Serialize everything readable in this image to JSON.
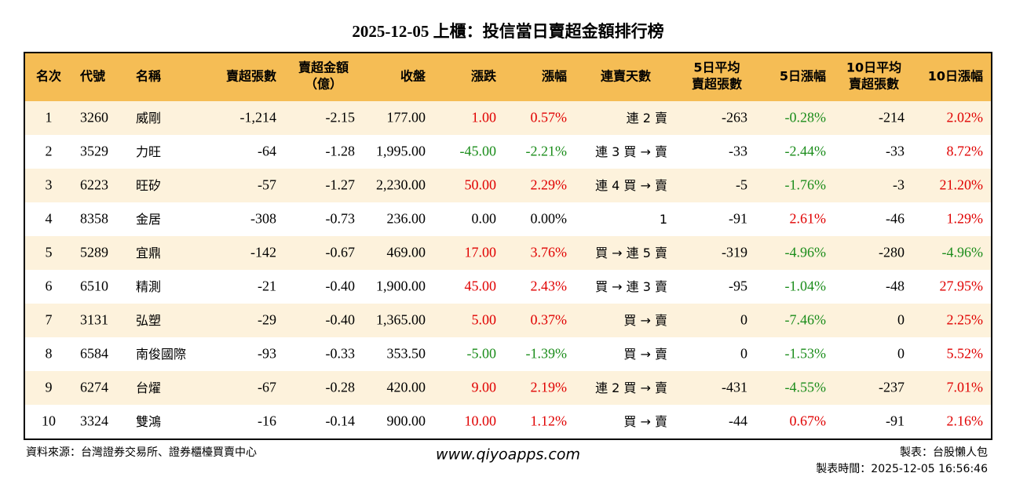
{
  "header": {
    "title": "2025-12-05 上櫃：投信當日賣超金額排行榜"
  },
  "table": {
    "columns": [
      "名次",
      "代號",
      "名稱",
      "賣超張數",
      [
        "賣超金額",
        "（億）"
      ],
      "收盤",
      "漲跌",
      "漲幅",
      "連賣天數",
      [
        "5日平均",
        "賣超張數"
      ],
      "5日漲幅",
      [
        "10日平均",
        "賣超張數"
      ],
      "10日漲幅"
    ],
    "rows": [
      [
        "1",
        "3260",
        "威剛",
        "-1,214",
        "-2.15",
        "177.00",
        "1.00",
        "0.57%",
        "連 2 賣",
        "-263",
        "-0.28%",
        "-214",
        "2.02%"
      ],
      [
        "2",
        "3529",
        "力旺",
        "-64",
        "-1.28",
        "1,995.00",
        "-45.00",
        "-2.21%",
        "連 3 買 → 賣",
        "-33",
        "-2.44%",
        "-33",
        "8.72%"
      ],
      [
        "3",
        "6223",
        "旺矽",
        "-57",
        "-1.27",
        "2,230.00",
        "50.00",
        "2.29%",
        "連 4 買 → 賣",
        "-5",
        "-1.76%",
        "-3",
        "21.20%"
      ],
      [
        "4",
        "8358",
        "金居",
        "-308",
        "-0.73",
        "236.00",
        "0.00",
        "0.00%",
        "1",
        "-91",
        "2.61%",
        "-46",
        "1.29%"
      ],
      [
        "5",
        "5289",
        "宜鼎",
        "-142",
        "-0.67",
        "469.00",
        "17.00",
        "3.76%",
        "買 → 連 5 賣",
        "-319",
        "-4.96%",
        "-280",
        "-4.96%"
      ],
      [
        "6",
        "6510",
        "精測",
        "-21",
        "-0.40",
        "1,900.00",
        "45.00",
        "2.43%",
        "買 → 連 3 賣",
        "-95",
        "-1.04%",
        "-48",
        "27.95%"
      ],
      [
        "7",
        "3131",
        "弘塑",
        "-29",
        "-0.40",
        "1,365.00",
        "5.00",
        "0.37%",
        "買 → 賣",
        "0",
        "-7.46%",
        "0",
        "2.25%"
      ],
      [
        "8",
        "6584",
        "南俊國際",
        "-93",
        "-0.33",
        "353.50",
        "-5.00",
        "-1.39%",
        "買 → 賣",
        "0",
        "-1.53%",
        "0",
        "5.52%"
      ],
      [
        "9",
        "6274",
        "台燿",
        "-67",
        "-0.28",
        "420.00",
        "9.00",
        "2.19%",
        "連 2 買 → 賣",
        "-431",
        "-4.55%",
        "-237",
        "7.01%"
      ],
      [
        "10",
        "3324",
        "雙鴻",
        "-16",
        "-0.14",
        "900.00",
        "10.00",
        "1.12%",
        "買 → 賣",
        "-44",
        "0.67%",
        "-91",
        "2.16%"
      ]
    ]
  },
  "footer": {
    "source": "資料來源：台灣證券交易所、證券櫃檯買賣中心",
    "website": "www.qiyoapps.com",
    "maker": "製表：台股懶人包",
    "time": "製表時間：2025-12-05 16:56:46"
  }
}
